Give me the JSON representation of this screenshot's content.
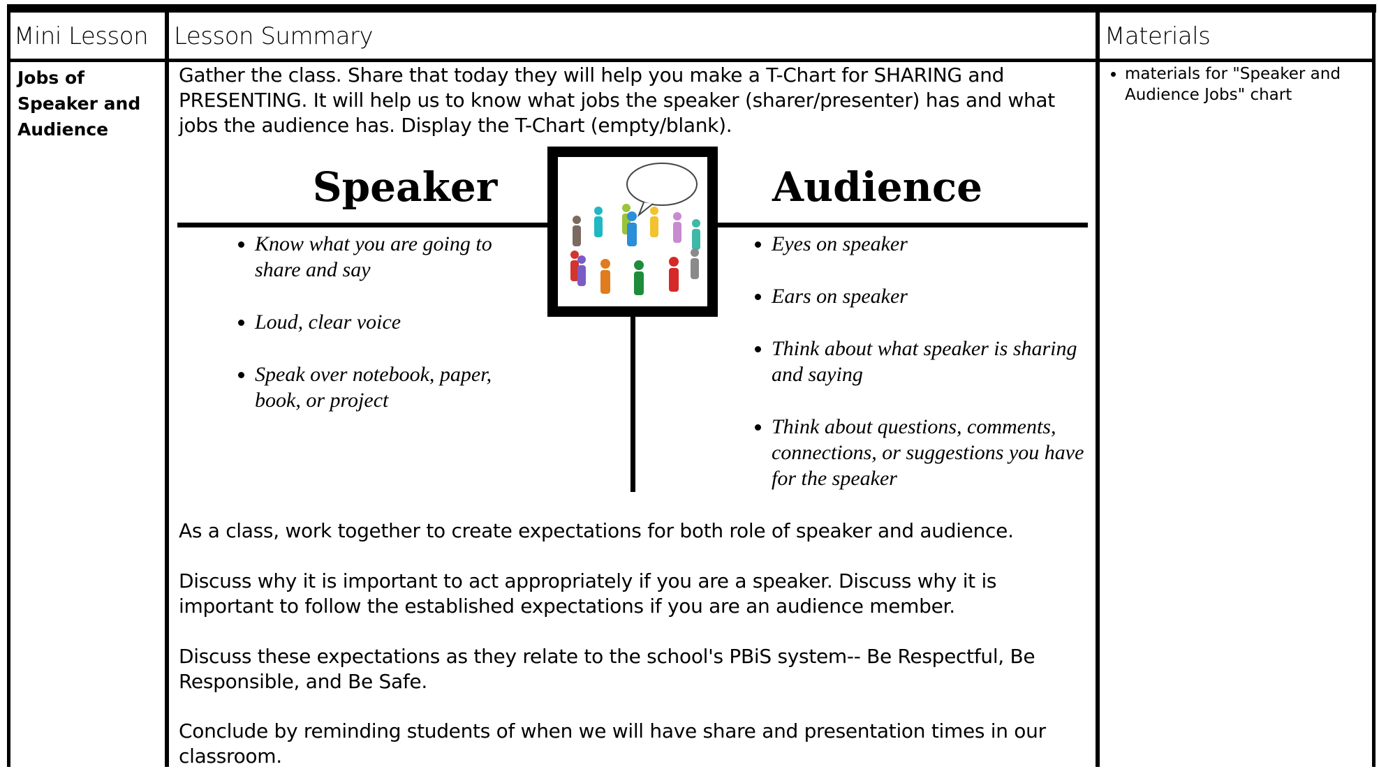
{
  "header": {
    "col1": "Mini Lesson",
    "col2": "Lesson Summary",
    "col3": "Materials"
  },
  "row": {
    "topic": "Jobs of Speaker and Audience",
    "summary": {
      "intro": "Gather the class.  Share that today they will help you make a T-Chart for SHARING and PRESENTING.  It will help us to know what jobs the speaker (sharer/presenter) has and what jobs the audience has.  Display the T-Chart (empty/blank).",
      "t_chart": {
        "left_title": "Speaker",
        "left_items": [
          "Know what you are going to share and say",
          "Loud, clear voice",
          "Speak over notebook, paper, book, or project"
        ],
        "right_title": "Audience",
        "right_items": [
          "Eyes on speaker",
          "Ears on speaker",
          "Think about what speaker is sharing and saying",
          "Think about questions, comments, connections, or suggestions you have for the speaker"
        ]
      },
      "paragraphs": [
        "As a class, work together to create expectations for both role of speaker and audience.",
        "Discuss why it is important to act appropriately if you are a speaker.  Discuss why it is important to follow the established expectations if you are an audience member.",
        "Discuss these expectations as they relate to the school's PBiS system-- Be Respectful, Be Responsible, and Be Safe.",
        "Conclude by reminding students of when we will have share and presentation times in our classroom."
      ]
    },
    "materials": [
      "materials for \"Speaker and Audience Jobs\" chart"
    ]
  }
}
